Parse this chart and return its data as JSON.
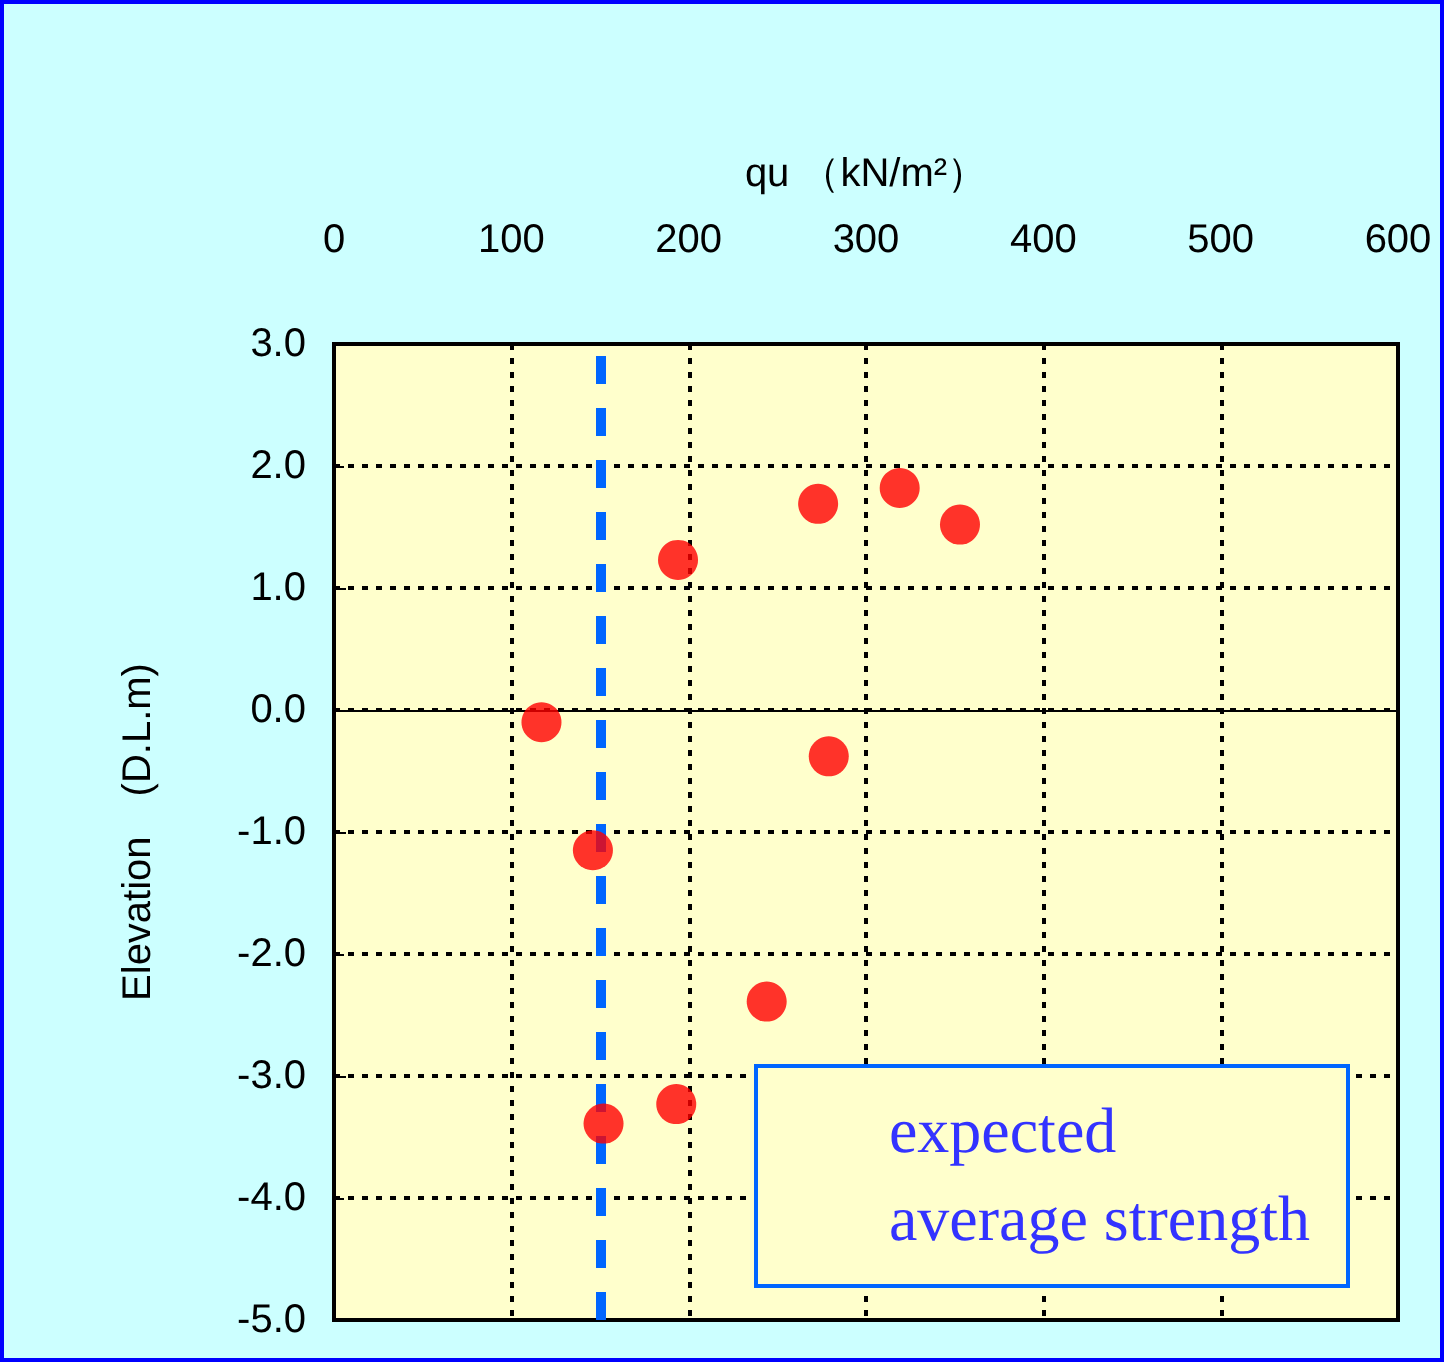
{
  "chart_data": {
    "type": "scatter",
    "xlabel": "qu （kN/m²）",
    "ylabel": "Elevation　(D.L.m)",
    "x": [
      117,
      146,
      194,
      273,
      319,
      353,
      279,
      244,
      193,
      152
    ],
    "series": [
      {
        "color": "#ff0000",
        "values": [
          -0.1,
          -1.15,
          1.23,
          1.69,
          1.82,
          1.52,
          -0.38,
          -2.39,
          -3.23,
          -3.39
        ]
      }
    ],
    "xlim": [
      0,
      600
    ],
    "xticks": [
      0,
      100,
      200,
      300,
      400,
      500,
      600
    ],
    "ylim": [
      -5,
      3
    ],
    "yticks": [
      {
        "value": -5,
        "label": "-5.0"
      },
      {
        "value": -4,
        "label": "-4.0"
      },
      {
        "value": -3,
        "label": "-3.0"
      },
      {
        "value": -2,
        "label": "-2.0"
      },
      {
        "value": -1,
        "label": "-1.0"
      },
      {
        "value": 0,
        "label": "0.0"
      },
      {
        "value": 1,
        "label": "1.0"
      },
      {
        "value": 2,
        "label": "2.0"
      },
      {
        "value": 3,
        "label": "3.0"
      }
    ],
    "ref_lines": [
      {
        "axis": "y",
        "value": 0,
        "color": "#000000",
        "line_style": "solid"
      },
      {
        "axis": "x",
        "value": 150,
        "color": "#0066ff",
        "line_style": "dashed"
      }
    ],
    "annotations": [
      "expected average strength"
    ],
    "grid": true,
    "marker": "circle"
  }
}
